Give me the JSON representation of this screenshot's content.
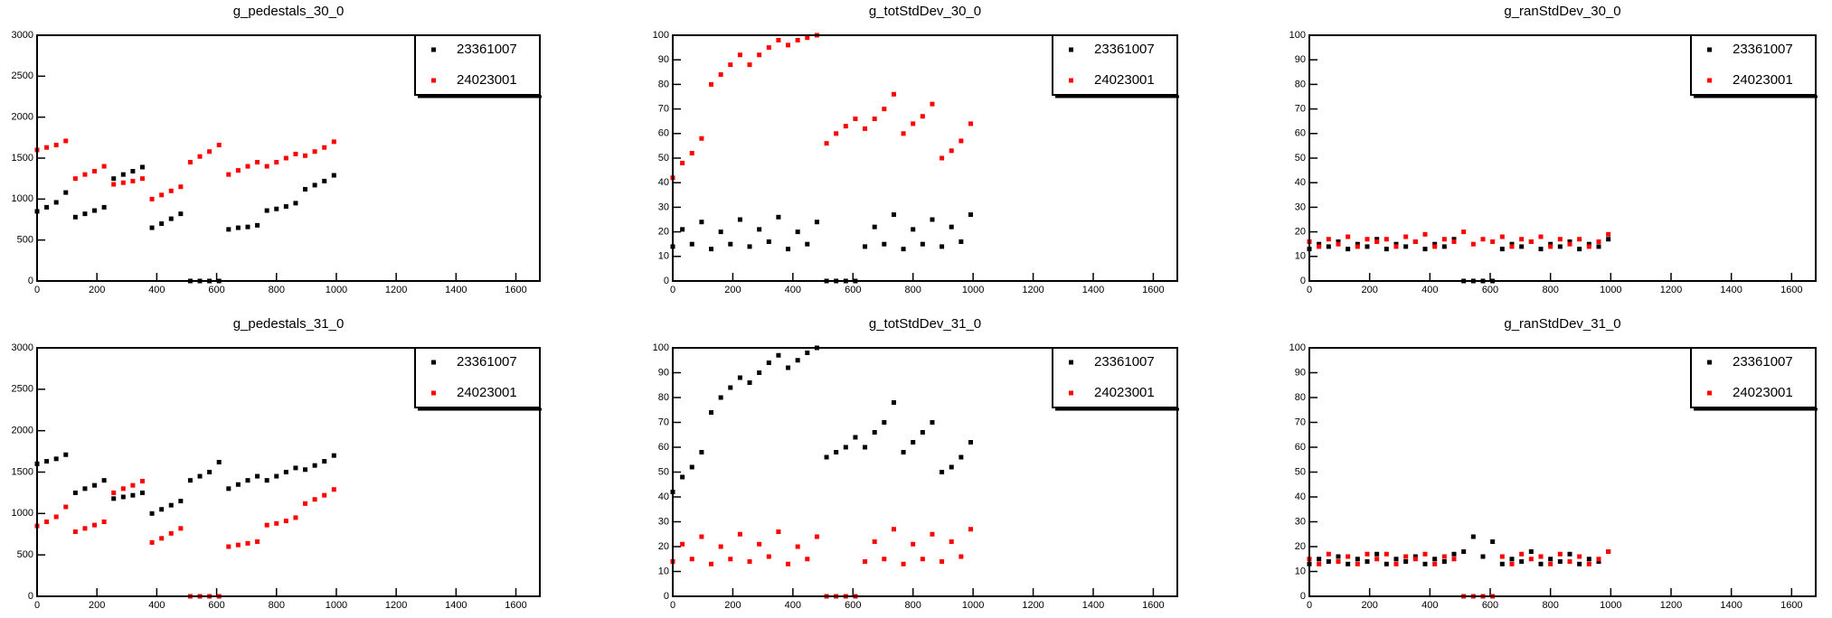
{
  "chart_data": [
    {
      "type": "scatter",
      "title": "g_pedestals_30_0",
      "legend": "top-right",
      "xlim": [
        0,
        1680
      ],
      "ylim": [
        0,
        3000
      ],
      "xticks": [
        0,
        200,
        400,
        600,
        800,
        1000,
        1200,
        1400,
        1600
      ],
      "yticks": [
        0,
        500,
        1000,
        1500,
        2000,
        2500,
        3000
      ],
      "x": [
        0,
        32,
        64,
        96,
        128,
        160,
        192,
        224,
        256,
        288,
        320,
        352,
        384,
        416,
        448,
        480,
        512,
        544,
        576,
        608,
        640,
        672,
        704,
        736,
        768,
        800,
        832,
        864,
        896,
        928,
        960,
        992
      ],
      "series": [
        {
          "name": "23361007",
          "color": "#000000",
          "values": [
            850,
            900,
            960,
            1080,
            780,
            820,
            860,
            900,
            1250,
            1300,
            1340,
            1390,
            650,
            700,
            760,
            820,
            0,
            0,
            0,
            0,
            630,
            650,
            660,
            680,
            860,
            880,
            910,
            950,
            1120,
            1170,
            1220,
            1290
          ]
        },
        {
          "name": "24023001",
          "color": "#ff0000",
          "values": [
            1600,
            1630,
            1660,
            1710,
            1250,
            1300,
            1340,
            1400,
            1180,
            1200,
            1220,
            1250,
            1000,
            1050,
            1100,
            1150,
            1450,
            1520,
            1580,
            1660,
            1300,
            1350,
            1400,
            1450,
            1400,
            1450,
            1500,
            1550,
            1530,
            1580,
            1630,
            1700
          ]
        }
      ]
    },
    {
      "type": "scatter",
      "title": "g_totStdDev_30_0",
      "legend": "top-right",
      "xlim": [
        0,
        1680
      ],
      "ylim": [
        0,
        100
      ],
      "xticks": [
        0,
        200,
        400,
        600,
        800,
        1000,
        1200,
        1400,
        1600
      ],
      "yticks": [
        0,
        10,
        20,
        30,
        40,
        50,
        60,
        70,
        80,
        90,
        100
      ],
      "x": [
        0,
        32,
        64,
        96,
        128,
        160,
        192,
        224,
        256,
        288,
        320,
        352,
        384,
        416,
        448,
        480,
        512,
        544,
        576,
        608,
        640,
        672,
        704,
        736,
        768,
        800,
        832,
        864,
        896,
        928,
        960,
        992
      ],
      "series": [
        {
          "name": "23361007",
          "color": "#000000",
          "values": [
            14,
            21,
            15,
            24,
            13,
            20,
            15,
            25,
            14,
            21,
            16,
            26,
            13,
            20,
            15,
            24,
            0,
            0,
            0,
            0,
            14,
            22,
            15,
            27,
            13,
            21,
            15,
            25,
            14,
            22,
            16,
            27
          ]
        },
        {
          "name": "24023001",
          "color": "#ff0000",
          "values": [
            42,
            48,
            52,
            58,
            80,
            84,
            88,
            92,
            88,
            92,
            95,
            98,
            96,
            98,
            99,
            100,
            56,
            60,
            63,
            66,
            62,
            66,
            70,
            76,
            60,
            64,
            67,
            72,
            50,
            53,
            57,
            64
          ]
        }
      ]
    },
    {
      "type": "scatter",
      "title": "g_ranStdDev_30_0",
      "legend": "top-right",
      "xlim": [
        0,
        1680
      ],
      "ylim": [
        0,
        100
      ],
      "xticks": [
        0,
        200,
        400,
        600,
        800,
        1000,
        1200,
        1400,
        1600
      ],
      "yticks": [
        0,
        10,
        20,
        30,
        40,
        50,
        60,
        70,
        80,
        90,
        100
      ],
      "x": [
        0,
        32,
        64,
        96,
        128,
        160,
        192,
        224,
        256,
        288,
        320,
        352,
        384,
        416,
        448,
        480,
        512,
        544,
        576,
        608,
        640,
        672,
        704,
        736,
        768,
        800,
        832,
        864,
        896,
        928,
        960,
        992
      ],
      "series": [
        {
          "name": "23361007",
          "color": "#000000",
          "values": [
            13,
            15,
            14,
            16,
            13,
            15,
            14,
            17,
            13,
            15,
            14,
            16,
            13,
            15,
            14,
            17,
            0,
            0,
            0,
            0,
            13,
            15,
            14,
            16,
            13,
            15,
            14,
            16,
            13,
            15,
            14,
            17
          ]
        },
        {
          "name": "24023001",
          "color": "#ff0000",
          "values": [
            16,
            14,
            17,
            15,
            18,
            14,
            17,
            16,
            17,
            14,
            18,
            16,
            19,
            14,
            17,
            16,
            20,
            15,
            17,
            16,
            18,
            14,
            17,
            16,
            18,
            14,
            17,
            15,
            17,
            14,
            16,
            19
          ]
        }
      ]
    },
    {
      "type": "scatter",
      "title": "g_pedestals_31_0",
      "legend": "top-right",
      "xlim": [
        0,
        1680
      ],
      "ylim": [
        0,
        3000
      ],
      "xticks": [
        0,
        200,
        400,
        600,
        800,
        1000,
        1200,
        1400,
        1600
      ],
      "yticks": [
        0,
        500,
        1000,
        1500,
        2000,
        2500,
        3000
      ],
      "x": [
        0,
        32,
        64,
        96,
        128,
        160,
        192,
        224,
        256,
        288,
        320,
        352,
        384,
        416,
        448,
        480,
        512,
        544,
        576,
        608,
        640,
        672,
        704,
        736,
        768,
        800,
        832,
        864,
        896,
        928,
        960,
        992
      ],
      "series": [
        {
          "name": "23361007",
          "color": "#000000",
          "values": [
            1600,
            1630,
            1660,
            1710,
            1250,
            1300,
            1340,
            1400,
            1180,
            1200,
            1220,
            1250,
            1000,
            1050,
            1100,
            1150,
            1400,
            1450,
            1500,
            1620,
            1300,
            1350,
            1400,
            1450,
            1400,
            1450,
            1500,
            1550,
            1530,
            1580,
            1630,
            1700
          ]
        },
        {
          "name": "24023001",
          "color": "#ff0000",
          "values": [
            850,
            900,
            960,
            1080,
            780,
            820,
            860,
            900,
            1250,
            1300,
            1340,
            1390,
            650,
            700,
            760,
            820,
            0,
            0,
            0,
            0,
            600,
            620,
            640,
            660,
            860,
            880,
            910,
            950,
            1120,
            1170,
            1220,
            1290
          ]
        }
      ]
    },
    {
      "type": "scatter",
      "title": "g_totStdDev_31_0",
      "legend": "top-right",
      "xlim": [
        0,
        1680
      ],
      "ylim": [
        0,
        100
      ],
      "xticks": [
        0,
        200,
        400,
        600,
        800,
        1000,
        1200,
        1400,
        1600
      ],
      "yticks": [
        0,
        10,
        20,
        30,
        40,
        50,
        60,
        70,
        80,
        90,
        100
      ],
      "x": [
        0,
        32,
        64,
        96,
        128,
        160,
        192,
        224,
        256,
        288,
        320,
        352,
        384,
        416,
        448,
        480,
        512,
        544,
        576,
        608,
        640,
        672,
        704,
        736,
        768,
        800,
        832,
        864,
        896,
        928,
        960,
        992
      ],
      "series": [
        {
          "name": "23361007",
          "color": "#000000",
          "values": [
            42,
            48,
            52,
            58,
            74,
            80,
            84,
            88,
            86,
            90,
            94,
            97,
            92,
            95,
            98,
            100,
            56,
            58,
            60,
            64,
            60,
            66,
            70,
            78,
            58,
            62,
            66,
            70,
            50,
            52,
            56,
            62
          ]
        },
        {
          "name": "24023001",
          "color": "#ff0000",
          "values": [
            14,
            21,
            15,
            24,
            13,
            20,
            15,
            25,
            14,
            21,
            16,
            26,
            13,
            20,
            15,
            24,
            0,
            0,
            0,
            0,
            14,
            22,
            15,
            27,
            13,
            21,
            15,
            25,
            14,
            22,
            16,
            27
          ]
        }
      ]
    },
    {
      "type": "scatter",
      "title": "g_ranStdDev_31_0",
      "legend": "top-right",
      "xlim": [
        0,
        1680
      ],
      "ylim": [
        0,
        100
      ],
      "xticks": [
        0,
        200,
        400,
        600,
        800,
        1000,
        1200,
        1400,
        1600
      ],
      "yticks": [
        0,
        10,
        20,
        30,
        40,
        50,
        60,
        70,
        80,
        90,
        100
      ],
      "x": [
        0,
        32,
        64,
        96,
        128,
        160,
        192,
        224,
        256,
        288,
        320,
        352,
        384,
        416,
        448,
        480,
        512,
        544,
        576,
        608,
        640,
        672,
        704,
        736,
        768,
        800,
        832,
        864,
        896,
        928,
        960,
        992
      ],
      "series": [
        {
          "name": "23361007",
          "color": "#000000",
          "values": [
            13,
            15,
            14,
            16,
            13,
            15,
            14,
            17,
            13,
            15,
            14,
            16,
            13,
            15,
            14,
            17,
            18,
            24,
            16,
            22,
            13,
            15,
            14,
            18,
            13,
            15,
            14,
            17,
            13,
            15,
            14,
            18
          ]
        },
        {
          "name": "24023001",
          "color": "#ff0000",
          "values": [
            15,
            13,
            17,
            14,
            16,
            13,
            17,
            15,
            17,
            13,
            16,
            15,
            17,
            13,
            16,
            15,
            0,
            0,
            0,
            0,
            16,
            13,
            17,
            15,
            16,
            13,
            17,
            14,
            16,
            13,
            15,
            18
          ]
        }
      ]
    }
  ]
}
